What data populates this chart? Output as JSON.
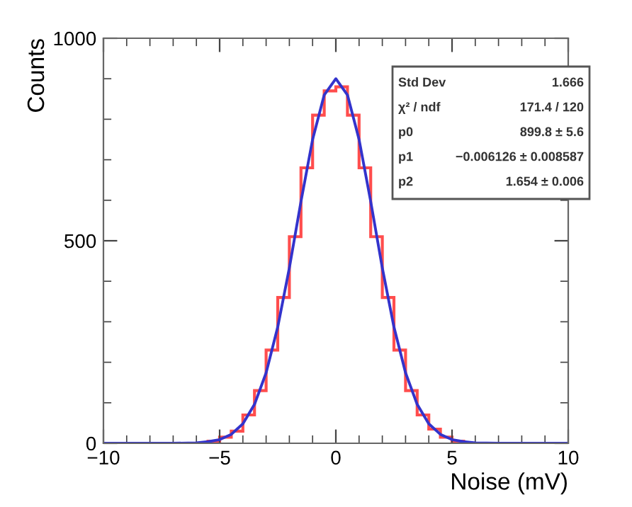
{
  "chart_data": {
    "type": "histogram",
    "xlabel": "Noise (mV)",
    "ylabel": "Counts",
    "bins": [
      -6,
      -5.5,
      -5,
      -4.5,
      -4,
      -3.5,
      -3,
      -2.5,
      -2,
      -1.5,
      -1,
      -0.5,
      0,
      0.5,
      1,
      1.5,
      2,
      2.5,
      3,
      3.5,
      4,
      4.5,
      5,
      5.5,
      6
    ],
    "values": [
      0,
      5,
      15,
      30,
      70,
      130,
      230,
      360,
      510,
      680,
      810,
      870,
      880,
      810,
      680,
      510,
      360,
      230,
      130,
      70,
      35,
      15,
      5,
      0
    ],
    "color": "#ff4d4d",
    "series": [
      {
        "type": "line",
        "color": "#3333cc",
        "x": [
          -10,
          -7,
          -6,
          -5.5,
          -5,
          -4.5,
          -4,
          -3.5,
          -3,
          -2.5,
          -2,
          -1.5,
          -1,
          -0.5,
          0,
          0.5,
          1,
          1.5,
          2,
          2.5,
          3,
          3.5,
          4,
          4.5,
          5,
          5.5,
          6,
          7,
          10
        ],
        "values": [
          0,
          0,
          1,
          4,
          9,
          22,
          48,
          96,
          174,
          287,
          433,
          597,
          750,
          860,
          900,
          860,
          750,
          597,
          433,
          287,
          174,
          96,
          48,
          22,
          9,
          4,
          1,
          0,
          0
        ]
      }
    ],
    "xlim": [
      -10,
      10
    ],
    "xticks": [
      -10,
      -5,
      0,
      5,
      10
    ],
    "ylim": [
      0,
      1000
    ],
    "yticks": [
      0,
      500,
      1000
    ],
    "grid": false,
    "annotations": [
      "Std Dev",
      "1.666",
      "χ² / ndf",
      "171.4 / 120",
      "p0",
      "899.8 ± 5.6",
      "p1",
      "−0.006126 ± 0.008587",
      "p2",
      "1.654 ± 0.006"
    ]
  }
}
